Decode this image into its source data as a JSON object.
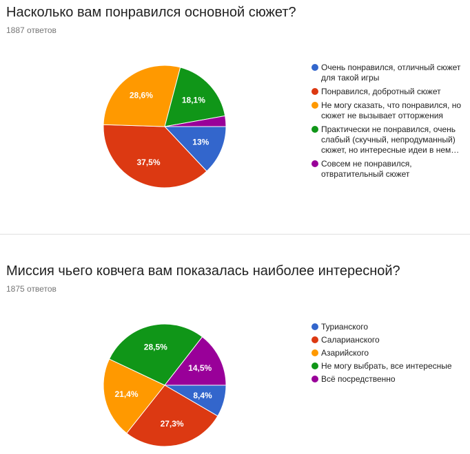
{
  "charts": [
    {
      "title": "Насколько вам понравился основной сюжет?",
      "responses": "1887 ответов",
      "legend": [
        "Очень понравился, отличный сюжет для такой игры",
        "Понравился, добротный сюжет",
        "Не могу сказать, что понравился, но сюжет не вызывает отторжения",
        "Практически не понравился, очень слабый (скучный, непродуманный) сюжет, но интересные идеи в нем…",
        "Совсем не понравился, отвратительный сюжет"
      ],
      "slice_labels": [
        "13%",
        "37,5%",
        "28,6%",
        "18,1%",
        ""
      ]
    },
    {
      "title": "Миссия чьего ковчега вам показалась наиболее интересной?",
      "responses": "1875 ответов",
      "legend": [
        "Турианского",
        "Саларианского",
        "Азарийского",
        "Не могу выбрать, все интересные",
        "Всё посредственно"
      ],
      "slice_labels": [
        "8,4%",
        "27,3%",
        "21,4%",
        "28,5%",
        "14,5%"
      ]
    }
  ],
  "chart_data": [
    {
      "type": "pie",
      "title": "Насколько вам понравился основной сюжет?",
      "categories": [
        "Очень понравился, отличный сюжет для такой игры",
        "Понравился, добротный сюжет",
        "Не могу сказать, что понравился, но сюжет не вызывает отторжения",
        "Практически не понравился, очень слабый (скучный, непродуманный) сюжет, но интересные идеи в нем…",
        "Совсем не понравился, отвратительный сюжет"
      ],
      "values": [
        13.0,
        37.5,
        28.6,
        18.1,
        2.8
      ],
      "colors": [
        "#3366cc",
        "#dc3912",
        "#ff9900",
        "#109618",
        "#990099"
      ],
      "legend_position": "right"
    },
    {
      "type": "pie",
      "title": "Миссия чьего ковчега вам показалась наиболее интересной?",
      "categories": [
        "Турианского",
        "Саларианского",
        "Азарийского",
        "Не могу выбрать, все интересные",
        "Всё посредственно"
      ],
      "values": [
        8.4,
        27.3,
        21.4,
        28.5,
        14.5
      ],
      "colors": [
        "#3366cc",
        "#dc3912",
        "#ff9900",
        "#109618",
        "#990099"
      ],
      "legend_position": "right"
    }
  ]
}
